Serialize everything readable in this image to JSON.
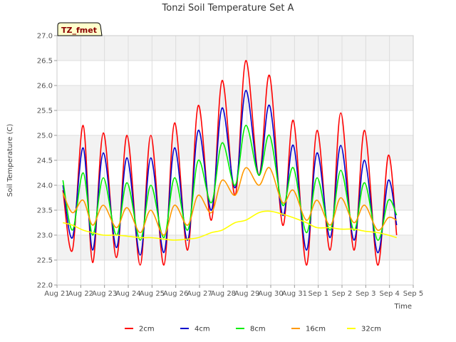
{
  "chart_data": {
    "type": "line",
    "title": "Tonzi Soil Temperature Set A",
    "xlabel": "Time",
    "ylabel": "Soil Temperature (C)",
    "ylim": [
      22.0,
      27.0
    ],
    "yticks": [
      "22.0",
      "22.5",
      "23.0",
      "23.5",
      "24.0",
      "24.5",
      "25.0",
      "25.5",
      "26.0",
      "26.5",
      "27.0"
    ],
    "xlim": [
      0,
      15
    ],
    "xticks": [
      "Aug 21",
      "Aug 22",
      "Aug 23",
      "Aug 24",
      "Aug 25",
      "Aug 26",
      "Aug 27",
      "Aug 28",
      "Aug 29",
      "Aug 30",
      "Aug 31",
      "Sep 1",
      "Sep 2",
      "Sep 3",
      "Sep 4",
      "Sep 5"
    ],
    "grid": true,
    "legend_position": "bottom",
    "annotation": "TZ_fmet",
    "x_days": [
      0.25,
      0.65,
      1.1,
      1.5,
      1.95,
      2.5,
      2.95,
      3.5,
      3.95,
      4.5,
      4.95,
      5.5,
      5.95,
      6.5,
      6.95,
      7.5,
      7.95,
      8.5,
      8.95,
      9.5,
      9.95,
      10.5,
      10.95,
      11.5,
      11.95,
      12.5,
      12.95,
      13.5,
      13.95,
      14.3
    ],
    "series": [
      {
        "name": "2cm",
        "color": "#ff0000",
        "values": [
          23.9,
          22.7,
          25.2,
          22.45,
          25.05,
          22.55,
          25.0,
          22.4,
          25.0,
          22.4,
          25.25,
          22.7,
          25.6,
          23.3,
          26.1,
          23.8,
          26.5,
          24.2,
          26.2,
          23.2,
          25.3,
          22.4,
          25.1,
          22.7,
          25.45,
          22.7,
          25.1,
          22.4,
          24.6,
          23.0
        ]
      },
      {
        "name": "4cm",
        "color": "#0000cc",
        "values": [
          24.0,
          22.95,
          24.75,
          22.7,
          24.65,
          22.75,
          24.55,
          22.6,
          24.55,
          22.65,
          24.75,
          22.9,
          25.1,
          23.5,
          25.55,
          23.95,
          25.9,
          24.2,
          25.6,
          23.4,
          24.8,
          22.7,
          24.65,
          22.95,
          24.8,
          22.9,
          24.5,
          22.65,
          24.1,
          23.2
        ]
      },
      {
        "name": "8cm",
        "color": "#00ee00",
        "values": [
          24.1,
          23.1,
          24.25,
          23.0,
          24.15,
          23.0,
          24.05,
          22.9,
          24.0,
          22.95,
          24.15,
          23.1,
          24.5,
          23.65,
          24.85,
          24.0,
          25.2,
          24.2,
          25.0,
          23.6,
          24.35,
          23.05,
          24.15,
          23.1,
          24.3,
          23.1,
          24.05,
          22.9,
          23.7,
          23.4
        ]
      },
      {
        "name": "16cm",
        "color": "#ff9900",
        "values": [
          23.85,
          23.45,
          23.7,
          23.2,
          23.6,
          23.15,
          23.55,
          23.05,
          23.5,
          23.0,
          23.6,
          23.2,
          23.8,
          23.45,
          24.1,
          23.8,
          24.35,
          24.0,
          24.35,
          23.65,
          23.9,
          23.3,
          23.7,
          23.2,
          23.75,
          23.25,
          23.6,
          23.1,
          23.35,
          23.3
        ]
      },
      {
        "name": "32cm",
        "color": "#ffff00",
        "values": [
          23.25,
          23.2,
          23.1,
          23.05,
          23.0,
          23.0,
          22.98,
          22.95,
          22.95,
          22.92,
          22.9,
          22.92,
          22.95,
          23.05,
          23.1,
          23.25,
          23.3,
          23.45,
          23.48,
          23.42,
          23.35,
          23.25,
          23.15,
          23.15,
          23.12,
          23.12,
          23.08,
          23.05,
          23.0,
          22.95
        ]
      }
    ]
  }
}
